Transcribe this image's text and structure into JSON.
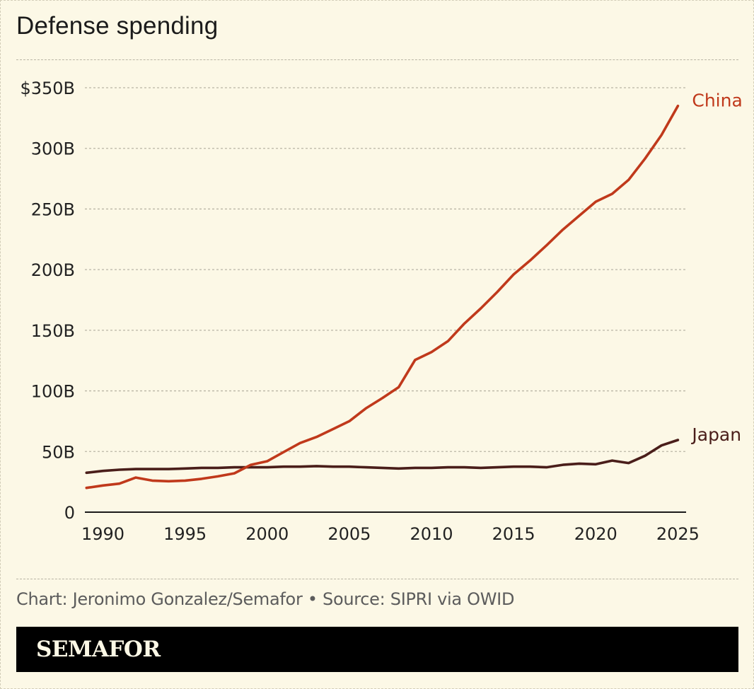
{
  "title": "Defense spending",
  "footer": {
    "source": "Chart: Jeronimo Gonzalez/Semafor • Source: SIPRI via OWID",
    "logo": "SEMAFOR"
  },
  "colors": {
    "background": "#fcf8e6",
    "china": "#c0391b",
    "japan": "#4a1e1a",
    "grid": "#b9b5a5",
    "axis_text": "#222222",
    "logo_bar": "#000000"
  },
  "chart_data": {
    "type": "line",
    "title": "Defense spending",
    "xlabel": "",
    "ylabel": "",
    "xlim": [
      1988.9,
      2025.5
    ],
    "ylim": [
      0,
      350
    ],
    "x_ticks": [
      1990,
      1995,
      2000,
      2005,
      2010,
      2015,
      2020,
      2025
    ],
    "x_tick_labels": [
      "1990",
      "1995",
      "2000",
      "2005",
      "2010",
      "2015",
      "2020",
      "2025"
    ],
    "y_ticks": [
      0,
      50,
      100,
      150,
      200,
      250,
      300,
      350
    ],
    "y_tick_labels": [
      "0",
      "50B",
      "100B",
      "150B",
      "200B",
      "250B",
      "300B",
      "$350B"
    ],
    "grid": "horizontal dashed",
    "legend": "direct labels at line ends",
    "x": [
      1989,
      1990,
      1991,
      1992,
      1993,
      1994,
      1995,
      1996,
      1997,
      1998,
      1999,
      2000,
      2001,
      2002,
      2003,
      2004,
      2005,
      2006,
      2007,
      2008,
      2009,
      2010,
      2011,
      2012,
      2013,
      2014,
      2015,
      2016,
      2017,
      2018,
      2019,
      2020,
      2021,
      2022,
      2023,
      2024,
      2025
    ],
    "series": [
      {
        "name": "China",
        "color": "#c0391b",
        "values": [
          20,
          22,
          23.5,
          28.5,
          26,
          25.5,
          26,
          27.5,
          29.5,
          32,
          39,
          42,
          49.5,
          57,
          62,
          68.5,
          75,
          85.5,
          94,
          103,
          125.5,
          132,
          141,
          155.5,
          168,
          181.5,
          196,
          207.5,
          220,
          233,
          244.5,
          256,
          262.5,
          274,
          291.5,
          311,
          335
        ]
      },
      {
        "name": "Japan",
        "color": "#4a1e1a",
        "values": [
          32.5,
          34,
          35,
          35.5,
          35.5,
          35.5,
          36,
          36.5,
          36.5,
          37,
          37,
          37,
          37.5,
          37.5,
          38,
          37.5,
          37.5,
          37,
          36.5,
          36,
          36.5,
          36.5,
          37,
          37,
          36.5,
          37,
          37.5,
          37.5,
          37,
          39,
          40,
          39.5,
          42.5,
          40.5,
          46.5,
          55,
          59.5
        ]
      }
    ]
  }
}
